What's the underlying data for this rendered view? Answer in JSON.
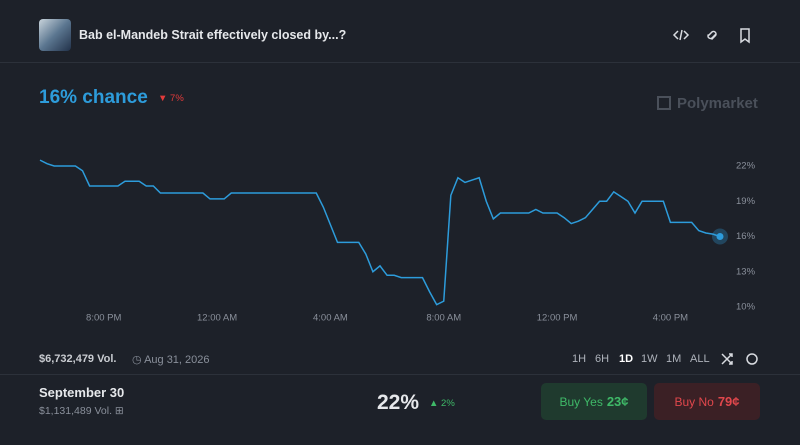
{
  "header": {
    "title": "Bab el-Mandeb Strait effectively closed by...?",
    "chance": "16% chance",
    "change": "7%",
    "brand": "Polymarket"
  },
  "chart_data": {
    "type": "line",
    "color": "#2d9cdb",
    "grid": false,
    "categories": [
      null,
      null,
      null,
      null,
      null,
      null,
      null,
      null,
      null,
      "8:00 PM",
      null,
      null,
      null,
      null,
      null,
      null,
      null,
      null,
      null,
      null,
      null,
      null,
      null,
      null,
      null,
      "12:00 AM",
      null,
      null,
      null,
      null,
      null,
      null,
      null,
      null,
      null,
      null,
      null,
      null,
      null,
      null,
      null,
      "4:00 AM",
      null,
      null,
      null,
      null,
      null,
      null,
      null,
      null,
      null,
      null,
      null,
      null,
      null,
      null,
      null,
      "8:00 AM",
      null,
      null,
      null,
      null,
      null,
      null,
      null,
      null,
      null,
      null,
      null,
      null,
      null,
      null,
      null,
      "12:00 PM",
      null,
      null,
      null,
      null,
      null,
      null,
      null,
      null,
      null,
      null,
      null,
      null,
      null,
      null,
      null,
      "4:00 PM",
      null,
      null,
      null,
      null,
      null,
      null,
      null
    ],
    "values": [
      22.5,
      22.2,
      22,
      22,
      22,
      22,
      21.6,
      20.3,
      20.3,
      20.3,
      20.3,
      20.3,
      20.7,
      20.7,
      20.7,
      20.3,
      20.3,
      19.7,
      19.7,
      19.7,
      19.7,
      19.7,
      19.7,
      19.7,
      19.2,
      19.2,
      19.2,
      19.7,
      19.7,
      19.7,
      19.7,
      19.7,
      19.7,
      19.7,
      19.7,
      19.7,
      19.7,
      19.7,
      19.7,
      19.7,
      18.5,
      17,
      15.5,
      15.5,
      15.5,
      15.5,
      14.5,
      13,
      13.5,
      12.7,
      12.7,
      12.5,
      12.5,
      12.5,
      12.5,
      11.3,
      10.2,
      10.5,
      19.5,
      21,
      20.6,
      20.8,
      21,
      19,
      17.5,
      18,
      18,
      18,
      18,
      18,
      18.3,
      18,
      18,
      18,
      17.6,
      17.1,
      17.3,
      17.6,
      18.3,
      19,
      19,
      19.8,
      19.4,
      19,
      18,
      19,
      19,
      19,
      19,
      17.2,
      17.2,
      17.2,
      17.2,
      16.5,
      16.3,
      16.2,
      16
    ],
    "ylim": [
      10,
      22
    ],
    "yticks": [
      {
        "value": 22,
        "label": "22%"
      },
      {
        "value": 19,
        "label": "19%"
      },
      {
        "value": 16,
        "label": "16%"
      },
      {
        "value": 13,
        "label": "13%"
      },
      {
        "value": 10,
        "label": "10%"
      }
    ]
  },
  "controls": {
    "volume": "$6,732,479 Vol.",
    "date": "Aug 31, 2026",
    "ranges": [
      "1H",
      "6H",
      "1D",
      "1W",
      "1M",
      "ALL"
    ]
  },
  "market": {
    "name": "September 30",
    "volume": "$1,131,489 Vol.",
    "probability": "22%",
    "change": "2%",
    "buy_yes": "Buy Yes",
    "yes_price": "23¢",
    "buy_no": "Buy No",
    "no_price": "79¢"
  }
}
